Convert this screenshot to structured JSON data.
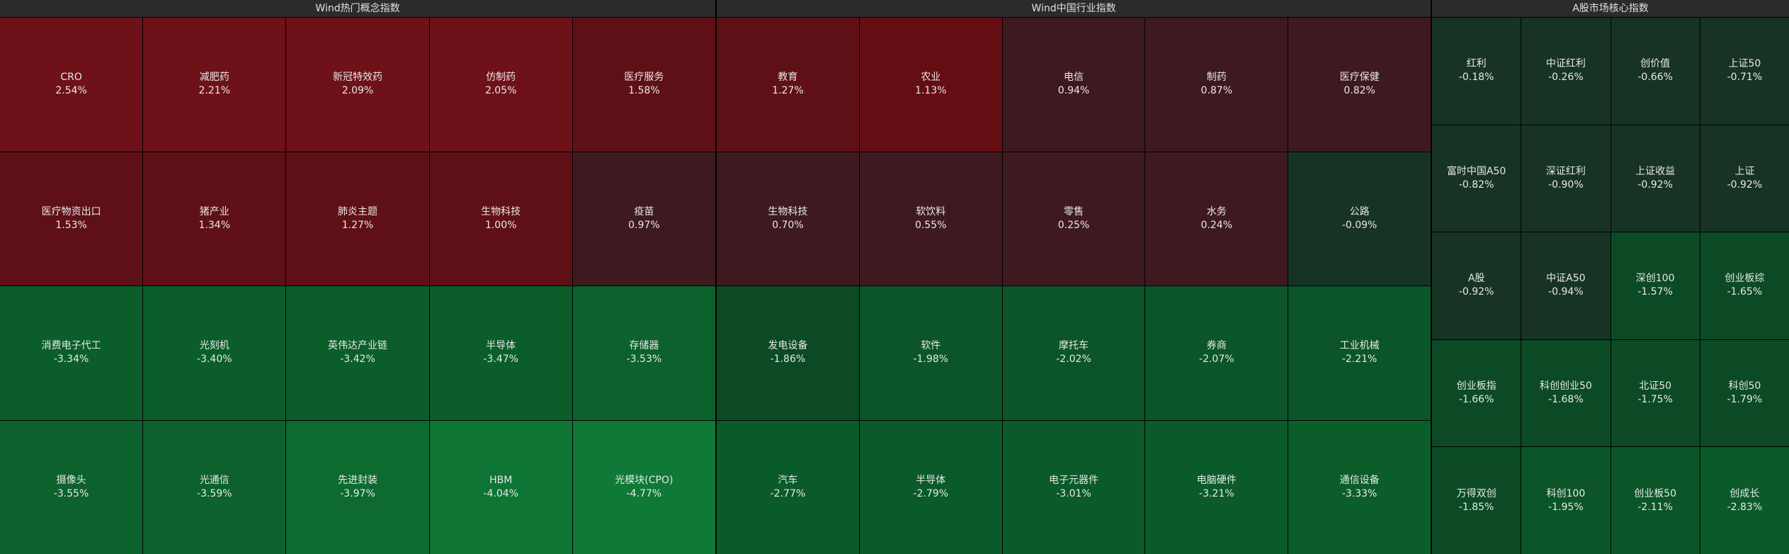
{
  "panels": [
    {
      "title": "Wind热门概念指数",
      "tiles": [
        {
          "name": "CRO",
          "value": "2.54%",
          "color": "#6e1118"
        },
        {
          "name": "减肥药",
          "value": "2.21%",
          "color": "#6e1118"
        },
        {
          "name": "新冠特效药",
          "value": "2.09%",
          "color": "#6e1118"
        },
        {
          "name": "仿制药",
          "value": "2.05%",
          "color": "#6e1118"
        },
        {
          "name": "医疗服务",
          "value": "1.58%",
          "color": "#5f1016"
        },
        {
          "name": "医疗物资出口",
          "value": "1.53%",
          "color": "#5f1016"
        },
        {
          "name": "猪产业",
          "value": "1.34%",
          "color": "#5f1016"
        },
        {
          "name": "肺炎主题",
          "value": "1.27%",
          "color": "#5f1016"
        },
        {
          "name": "生物科技",
          "value": "1.00%",
          "color": "#5f1016"
        },
        {
          "name": "疫苗",
          "value": "0.97%",
          "color": "#3e1a20"
        },
        {
          "name": "消费电子代工",
          "value": "-3.34%",
          "color": "#0b5e2a"
        },
        {
          "name": "光刻机",
          "value": "-3.40%",
          "color": "#0b5e2a"
        },
        {
          "name": "英伟达产业链",
          "value": "-3.42%",
          "color": "#0b5e2a"
        },
        {
          "name": "半导体",
          "value": "-3.47%",
          "color": "#0b5e2a"
        },
        {
          "name": "存储器",
          "value": "-3.53%",
          "color": "#0c612c"
        },
        {
          "name": "摄像头",
          "value": "-3.55%",
          "color": "#0c612c"
        },
        {
          "name": "光通信",
          "value": "-3.59%",
          "color": "#0c612c"
        },
        {
          "name": "先进封装",
          "value": "-3.97%",
          "color": "#0d6b30"
        },
        {
          "name": "HBM",
          "value": "-4.04%",
          "color": "#0e7535"
        },
        {
          "name": "光模块(CPO)",
          "value": "-4.77%",
          "color": "#0f7937"
        }
      ]
    },
    {
      "title": "Wind中国行业指数",
      "tiles": [
        {
          "name": "教育",
          "value": "1.27%",
          "color": "#5f1016"
        },
        {
          "name": "农业",
          "value": "1.13%",
          "color": "#640d12"
        },
        {
          "name": "电信",
          "value": "0.94%",
          "color": "#3e1a20"
        },
        {
          "name": "制药",
          "value": "0.87%",
          "color": "#3e1a20"
        },
        {
          "name": "医疗保健",
          "value": "0.82%",
          "color": "#3e1a20"
        },
        {
          "name": "生物科技",
          "value": "0.70%",
          "color": "#3e1a20"
        },
        {
          "name": "软饮料",
          "value": "0.55%",
          "color": "#3e1a20"
        },
        {
          "name": "零售",
          "value": "0.25%",
          "color": "#3e1a20"
        },
        {
          "name": "水务",
          "value": "0.24%",
          "color": "#3e1a20"
        },
        {
          "name": "公路",
          "value": "-0.09%",
          "color": "#173325"
        },
        {
          "name": "发电设备",
          "value": "-1.86%",
          "color": "#0b4a25"
        },
        {
          "name": "软件",
          "value": "-1.98%",
          "color": "#0b5528"
        },
        {
          "name": "摩托车",
          "value": "-2.02%",
          "color": "#0b5528"
        },
        {
          "name": "券商",
          "value": "-2.07%",
          "color": "#0b5528"
        },
        {
          "name": "工业机械",
          "value": "-2.21%",
          "color": "#0b5528"
        },
        {
          "name": "汽车",
          "value": "-2.77%",
          "color": "#0b5a2a"
        },
        {
          "name": "半导体",
          "value": "-2.79%",
          "color": "#0b5a2a"
        },
        {
          "name": "电子元器件",
          "value": "-3.01%",
          "color": "#0b5a2a"
        },
        {
          "name": "电脑硬件",
          "value": "-3.21%",
          "color": "#0b5a2a"
        },
        {
          "name": "通信设备",
          "value": "-3.33%",
          "color": "#0b5e2a"
        }
      ]
    },
    {
      "title": "A股市场核心指数",
      "tiles": [
        {
          "name": "红利",
          "value": "-0.18%",
          "color": "#173325"
        },
        {
          "name": "中证红利",
          "value": "-0.26%",
          "color": "#173325"
        },
        {
          "name": "创价值",
          "value": "-0.66%",
          "color": "#173325"
        },
        {
          "name": "上证50",
          "value": "-0.71%",
          "color": "#173325"
        },
        {
          "name": "富时中国A50",
          "value": "-0.82%",
          "color": "#173325"
        },
        {
          "name": "深证红利",
          "value": "-0.90%",
          "color": "#173325"
        },
        {
          "name": "上证收益",
          "value": "-0.92%",
          "color": "#173325"
        },
        {
          "name": "上证",
          "value": "-0.92%",
          "color": "#173325"
        },
        {
          "name": "A股",
          "value": "-0.92%",
          "color": "#173325"
        },
        {
          "name": "中证A50",
          "value": "-0.94%",
          "color": "#173325"
        },
        {
          "name": "深创100",
          "value": "-1.57%",
          "color": "#0b4a25"
        },
        {
          "name": "创业板综",
          "value": "-1.65%",
          "color": "#0b4a25"
        },
        {
          "name": "创业板指",
          "value": "-1.66%",
          "color": "#0b4a25"
        },
        {
          "name": "科创创业50",
          "value": "-1.68%",
          "color": "#0b4a25"
        },
        {
          "name": "北证50",
          "value": "-1.75%",
          "color": "#0b4a25"
        },
        {
          "name": "科创50",
          "value": "-1.79%",
          "color": "#0b4a25"
        },
        {
          "name": "万得双创",
          "value": "-1.85%",
          "color": "#0b4a25"
        },
        {
          "name": "科创100",
          "value": "-1.95%",
          "color": "#0b5528"
        },
        {
          "name": "创业板50",
          "value": "-2.11%",
          "color": "#0b5528"
        },
        {
          "name": "创成长",
          "value": "-2.83%",
          "color": "#0b5a2a"
        }
      ]
    }
  ]
}
